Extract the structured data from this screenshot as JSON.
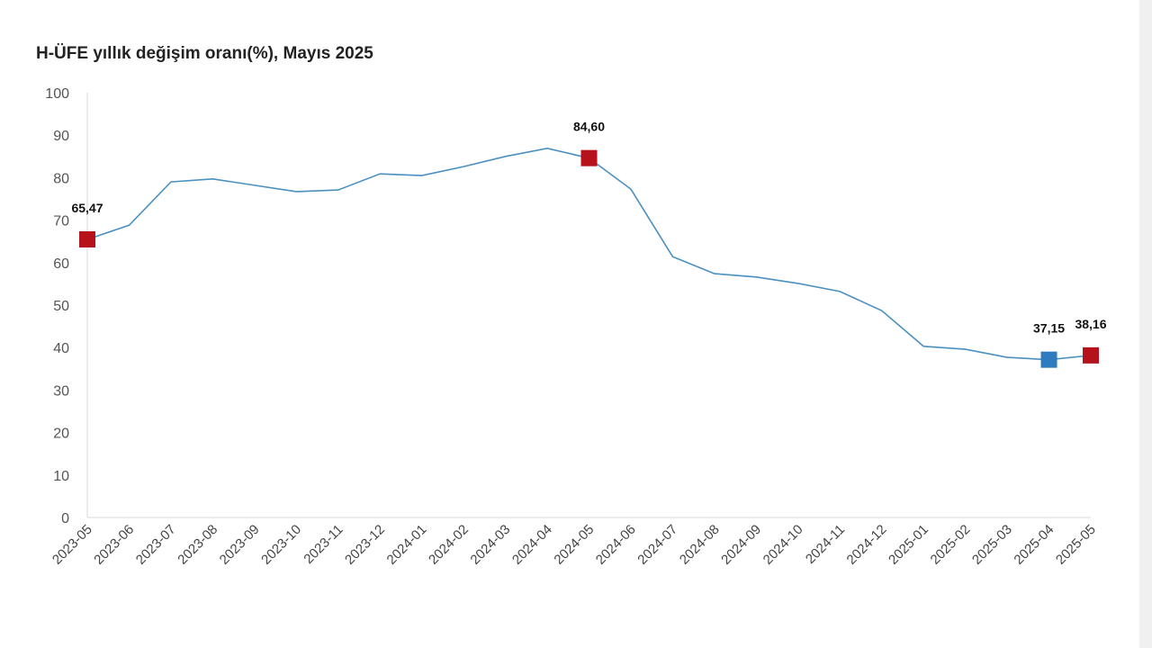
{
  "chart_data": {
    "type": "line",
    "title": "H-ÜFE yıllık değişim oranı(%), Mayıs 2025",
    "xlabel": "",
    "ylabel": "",
    "ylim": [
      0,
      100
    ],
    "yticks": [
      0,
      10,
      20,
      30,
      40,
      50,
      60,
      70,
      80,
      90,
      100
    ],
    "grid": false,
    "categories": [
      "2023-05",
      "2023-06",
      "2023-07",
      "2023-08",
      "2023-09",
      "2023-10",
      "2023-11",
      "2023-12",
      "2024-01",
      "2024-02",
      "2024-03",
      "2024-04",
      "2024-05",
      "2024-06",
      "2024-07",
      "2024-08",
      "2024-09",
      "2024-10",
      "2024-11",
      "2024-12",
      "2025-01",
      "2025-02",
      "2025-03",
      "2025-04",
      "2025-05"
    ],
    "series": [
      {
        "name": "H-ÜFE",
        "color": "#4a90c0",
        "values": [
          65.47,
          68.8,
          79.0,
          79.7,
          78.2,
          76.7,
          77.1,
          80.9,
          80.5,
          82.6,
          85.0,
          86.9,
          84.6,
          77.3,
          61.4,
          57.4,
          56.6,
          55.1,
          53.2,
          48.7,
          40.3,
          39.6,
          37.7,
          37.15,
          38.16
        ]
      }
    ],
    "markers": [
      {
        "index": 0,
        "label": "65,47",
        "color": "#b5121b"
      },
      {
        "index": 12,
        "label": "84,60",
        "color": "#b5121b"
      },
      {
        "index": 23,
        "label": "37,15",
        "color": "#2e7bbf"
      },
      {
        "index": 24,
        "label": "38,16",
        "color": "#b5121b"
      }
    ]
  }
}
